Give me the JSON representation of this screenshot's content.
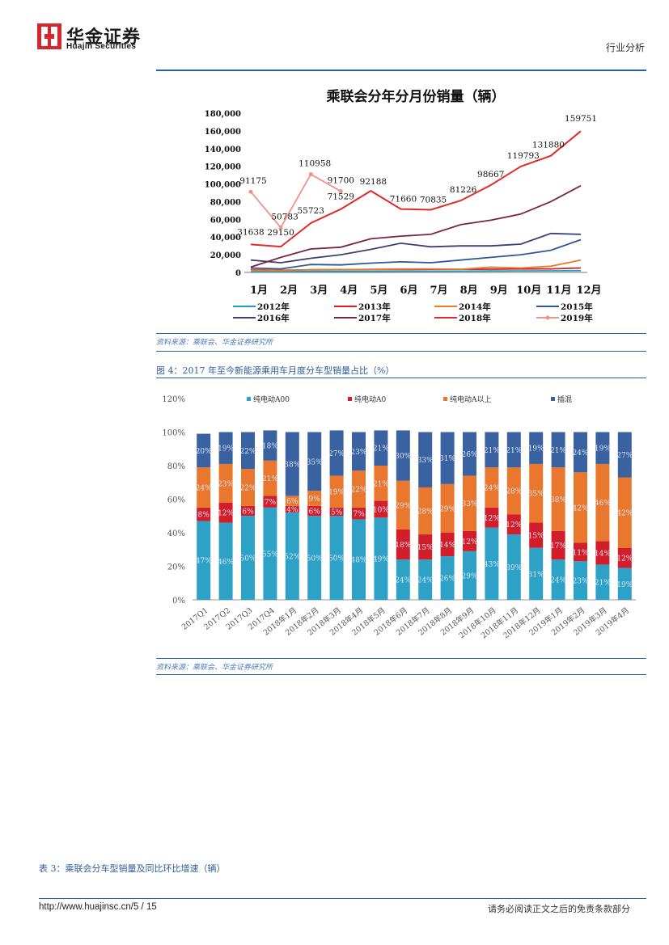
{
  "header": {
    "brand_cn": "华金证券",
    "brand_en": "Huajin Securities",
    "section": "行业分析"
  },
  "chart1": {
    "source_note": "资料来源：乘联会、华金证券研究所",
    "chart_data": {
      "type": "line",
      "title": "乘联会分年分月份销量（辆）",
      "categories": [
        "1月",
        "2月",
        "3月",
        "4月",
        "5月",
        "6月",
        "7月",
        "8月",
        "9月",
        "10月",
        "11月",
        "12月"
      ],
      "y_ticks": [
        "180,000",
        "160,000",
        "140,000",
        "120,000",
        "100,000",
        "80,000",
        "60,000",
        "40,000",
        "20,000",
        "0"
      ],
      "ylim": [
        0,
        180000
      ],
      "series": [
        {
          "name": "2012年",
          "color": "#1aa0c4",
          "values": [
            800,
            800,
            1200,
            1200,
            1300,
            1400,
            1400,
            1500,
            1600,
            1700,
            1800,
            2000
          ]
        },
        {
          "name": "2013年",
          "color": "#d81e1e",
          "values": [
            3000,
            2500,
            3000,
            3200,
            3400,
            3300,
            3500,
            3600,
            3700,
            3900,
            4000,
            5000
          ]
        },
        {
          "name": "2014年",
          "color": "#ec7a2a",
          "values": [
            2500,
            2000,
            3000,
            3000,
            3500,
            3800,
            4000,
            3500,
            6000,
            5000,
            7000,
            14000
          ]
        },
        {
          "name": "2015年",
          "color": "#2e5a8f",
          "values": [
            5000,
            4000,
            9000,
            8500,
            10500,
            12000,
            11000,
            14000,
            17000,
            20000,
            25000,
            37000
          ]
        },
        {
          "name": "2016年",
          "color": "#3c3f74",
          "values": [
            14000,
            11000,
            16000,
            20000,
            26000,
            33000,
            29000,
            30000,
            30000,
            32000,
            44000,
            43000
          ]
        },
        {
          "name": "2017年",
          "color": "#7a2548",
          "values": [
            6000,
            17000,
            26500,
            28500,
            38000,
            41000,
            43000,
            54000,
            59000,
            66000,
            80000,
            98000
          ]
        },
        {
          "name": "2018年",
          "color": "#e02b2b",
          "values": [
            31638,
            29150,
            55723,
            71529,
            92188,
            71660,
            70835,
            81226,
            98667,
            119793,
            131880,
            159751
          ]
        },
        {
          "name": "2019年",
          "color": "#f0918b",
          "values": [
            91175,
            50783,
            110958,
            91700,
            null,
            null,
            null,
            null,
            null,
            null,
            null,
            null
          ]
        }
      ],
      "data_labels": {
        "2018年": [
          "31638",
          "29150",
          "55723",
          "71529",
          "92188",
          "71660",
          "70835",
          "81226",
          "98667",
          "119793",
          "131880",
          "159751"
        ],
        "2019年": [
          "91175",
          "50783",
          "110958",
          "91700"
        ]
      }
    }
  },
  "chart2": {
    "caption": "图 4：2017 年至今新能源乘用车月度分车型销量占比（%）",
    "source_note": "资料来源：乘联会、华金证券研究所",
    "chart_data": {
      "type": "bar",
      "stacked": true,
      "y_ticks": [
        "120%",
        "100%",
        "80%",
        "60%",
        "40%",
        "20%",
        "0%"
      ],
      "ylim": [
        0,
        120
      ],
      "categories": [
        "2017Q1",
        "2017Q2",
        "2017Q3",
        "2017Q4",
        "2018年1月",
        "2018年2月",
        "2018年3月",
        "2018年4月",
        "2018年5月",
        "2018年6月",
        "2018年7月",
        "2018年8月",
        "2018年9月",
        "2018年10月",
        "2018年11月",
        "2018年12月",
        "2019年1月",
        "2019年2月",
        "2019年3月",
        "2019年4月"
      ],
      "series": [
        {
          "name": "纯电动A00",
          "color": "#2ea2c6",
          "values": [
            47,
            46,
            50,
            55,
            52,
            50,
            50,
            48,
            49,
            24,
            24,
            26,
            29,
            43,
            39,
            31,
            24,
            23,
            21,
            19
          ]
        },
        {
          "name": "纯电动A0",
          "color": "#d21d2b",
          "values": [
            8,
            12,
            6,
            7,
            4,
            6,
            5,
            7,
            10,
            18,
            15,
            14,
            12,
            12,
            12,
            15,
            17,
            11,
            14,
            12
          ]
        },
        {
          "name": "纯电动A以上",
          "color": "#e9782e",
          "values": [
            24,
            23,
            22,
            21,
            6,
            9,
            19,
            22,
            21,
            29,
            28,
            29,
            33,
            24,
            28,
            35,
            38,
            42,
            46,
            42
          ]
        },
        {
          "name": "插混",
          "color": "#3a61a0",
          "values": [
            20,
            19,
            22,
            18,
            38,
            35,
            27,
            23,
            21,
            30,
            33,
            31,
            26,
            21,
            21,
            19,
            21,
            24,
            19,
            27
          ]
        }
      ],
      "labels": [
        [
          "47%",
          "46%",
          "50%",
          "55%",
          "52%",
          "50%",
          "50%",
          "48%",
          "49%",
          "24%",
          "24%",
          "26%",
          "29%",
          "43%",
          "39%",
          "31%",
          "24%",
          "23%",
          "21%",
          "19%"
        ],
        [
          "8%",
          "12%",
          "6%",
          "7%",
          "4%",
          "6%",
          "5%",
          "7%",
          "10%",
          "18%",
          "15%",
          "14%",
          "12%",
          "12%",
          "12%",
          "15%",
          "17%",
          "11%",
          "14%",
          "12%"
        ],
        [
          "24%",
          "23%",
          "22%",
          "21%",
          "6%",
          "9%",
          "19%",
          "22%",
          "21%",
          "29%",
          "28%",
          "29%",
          "33%",
          "24%",
          "28%",
          "35%",
          "38%",
          "42%",
          "46%",
          "42%"
        ],
        [
          "20%",
          "19%",
          "22%",
          "18%",
          "38%",
          "35%",
          "27%",
          "23%",
          "21%",
          "30%",
          "33%",
          "31%",
          "26%",
          "21%",
          "21%",
          "19%",
          "21%",
          "24%",
          "19%",
          "27%"
        ]
      ]
    }
  },
  "table3": {
    "caption": "表 3：乘联会分车型销量及同比环比增速（辆）"
  },
  "footer": {
    "url": "http://www.huajinsc.cn/5 / 15",
    "notice": "请务必阅读正文之后的免责条款部分"
  }
}
